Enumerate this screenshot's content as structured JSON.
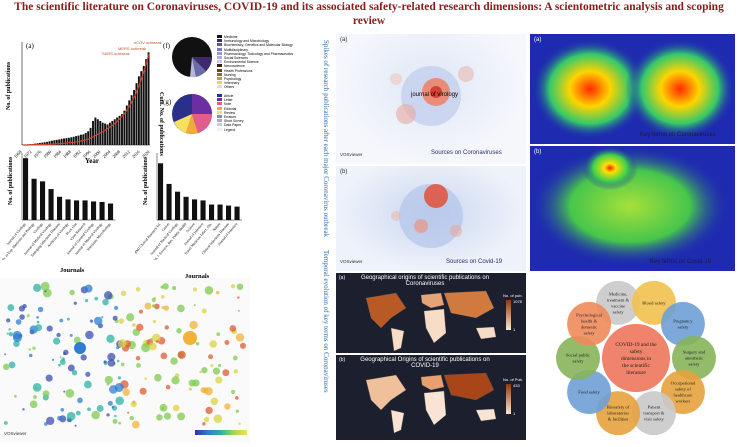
{
  "title": "The scientific literature on Coronaviruses, COVID-19 and its associated safety-related research dimensions: A scientometric analysis and scoping review",
  "left": {
    "panel_a_label": "(a)",
    "panel_f_label": "(f)",
    "panel_g_label": "(g)",
    "ylabel_left": "No. of publications",
    "ylabel_right": "Cum. No. of publications",
    "xlabel": "Year",
    "annotations": [
      "SARS outbreak",
      "MERS outbreak",
      "nCOV outbreak"
    ],
    "years": [
      "1968",
      "1972",
      "1976",
      "1980",
      "1984",
      "1988",
      "1992",
      "1996",
      "2000",
      "2004",
      "2008",
      "2012",
      "2016",
      "2020"
    ],
    "bar_values": [
      2,
      3,
      4,
      5,
      6,
      8,
      10,
      12,
      14,
      16,
      18,
      22,
      25,
      28,
      30,
      32,
      36,
      38,
      40,
      42,
      45,
      48,
      52,
      55,
      60,
      62,
      70,
      80,
      100,
      140,
      160,
      150,
      140,
      130,
      125,
      120,
      130,
      140,
      150,
      160,
      170,
      180,
      200,
      230,
      260,
      290,
      320,
      360,
      400,
      430,
      460,
      500,
      540
    ],
    "cum_values": [
      0,
      0,
      0,
      1,
      1,
      1,
      1,
      2,
      2,
      2,
      3,
      3,
      4,
      4,
      5,
      5,
      6,
      7,
      8,
      9,
      10,
      11,
      12,
      14,
      16,
      18,
      20,
      23,
      27,
      32,
      37,
      42,
      47,
      52,
      58,
      64,
      70,
      77,
      85,
      93,
      102,
      112,
      123,
      136,
      151,
      168,
      187,
      208,
      232,
      258,
      287,
      318,
      352
    ],
    "legend_f": [
      "Medicine",
      "Immunology and Microbiology",
      "Biochemistry, Genetics and Molecular Biology",
      "Multidisciplinary",
      "Pharmacology, Toxicology and Pharmaceutics",
      "Social Sciences",
      "Environmental Science",
      "Neuroscience",
      "Health Professions",
      "Nursing",
      "Psychology",
      "Veterinary",
      "Others"
    ],
    "legend_g": [
      "Article",
      "Letter",
      "Note",
      "Editorial",
      "Review",
      "Erratum",
      "Short Survey",
      "Data Paper",
      "Legend"
    ],
    "journals_label": "Journals",
    "journals_label2": "Journals",
    "journals_bars": [
      120,
      80,
      75,
      60,
      45,
      40,
      38,
      38,
      36,
      35,
      32
    ],
    "journals_names": [
      "Journal of Virology",
      "Adv. in Exp. Medicine and Biology",
      "Virology",
      "Journal of Medical Virology",
      "Emerging Infectious Diseases",
      "Archives of Virology",
      "PLoS One",
      "Virus Research",
      "Journal of General Virology",
      "Journal of Medical Virology",
      "Veterinary Microbiology"
    ],
    "journals2_bars": [
      110,
      70,
      55,
      45,
      40,
      38,
      30,
      30,
      28,
      26
    ],
    "journals2_names": [
      "BMJ Clinical Research Ed.",
      "Lancet",
      "Journal of Medical Virology",
      "Int. J. Environ. Res. Public Health",
      "Science",
      "Journal of Infection",
      "Travel Medicine Infect. Dis.",
      "Nature",
      "Clinical Infectious Diseases",
      "Journal of Infection"
    ],
    "ylabel_bars": "No. of publications",
    "ylabel_bars2": "No. of publications",
    "vosviewer": "VOSviewer"
  },
  "middle": {
    "side_text_1": "Spikes of research publications after each major Coronavirus outbreak",
    "side_text_2": "Temporal evolution of key terms on Coronaviruses",
    "panel_a": "(a)",
    "panel_b": "(b)",
    "caption_a": "Sources on Coronaviruses",
    "caption_b": "Sources on Covid-19",
    "vosviewer": "VOSviewer",
    "map_title_a": "Geographical origins of scientific publications on Coronaviruses",
    "map_title_b": "Geographical Origins of scientific publications on COVID-19",
    "map_legend_a_title": "No. of pub.",
    "map_legend_a_max": "1078",
    "map_legend_b_title": "No. of Pub.",
    "map_legend_b_max": "433",
    "map_legend_min": "1",
    "node_labels_a": [
      "journal of virology",
      "journal of medical virology"
    ],
    "node_labels_b": [
      "bmj"
    ]
  },
  "right": {
    "panel_a": "(a)",
    "panel_b": "(b)",
    "caption_a": "Key terms on Coronaviruses",
    "caption_b": "Key terms on Covid-19",
    "vosviewer": "VOSviewer",
    "center_text": "COVID-19 and the safety dimensions in the scientific literature",
    "petals": [
      {
        "label": "Medicine, treatment & vaccine safety",
        "color": "#c9c9c9"
      },
      {
        "label": "Blood safety",
        "color": "#f2c14e"
      },
      {
        "label": "Pregnancy safety",
        "color": "#6ea0d6"
      },
      {
        "label": "Surgery and anesthetic safety",
        "color": "#86b45a"
      },
      {
        "label": "Occupational safety of healthcare workers",
        "color": "#e6a23c"
      },
      {
        "label": "Patient transport & visit safety",
        "color": "#c9c9c9"
      },
      {
        "label": "Biosafety of laboratories & facilities",
        "color": "#e6a23c"
      },
      {
        "label": "Food safety",
        "color": "#6ea0d6"
      },
      {
        "label": "Social public safety",
        "color": "#86b45a"
      },
      {
        "label": "Psychological health & domestic safety",
        "color": "#f08b5b"
      }
    ],
    "center_color": "#f0836b"
  },
  "colors": {
    "title": "#8b1a1a",
    "bars": "#111111",
    "cum_line": "#d2402b",
    "side_text": "#2b6fb3"
  }
}
